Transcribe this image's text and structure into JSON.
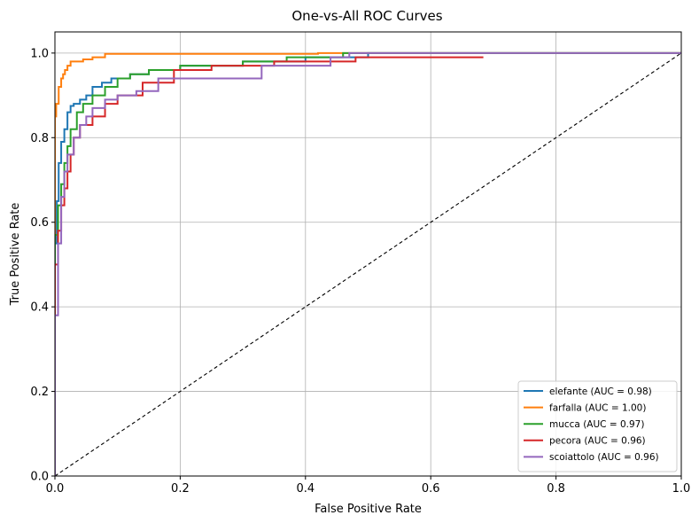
{
  "chart_data": {
    "type": "line",
    "title": "One-vs-All ROC Curves",
    "xlabel": "False Positive Rate",
    "ylabel": "True Positive Rate",
    "xlim": [
      0,
      1
    ],
    "ylim": [
      0,
      1.05
    ],
    "xticks": [
      0.0,
      0.2,
      0.4,
      0.6,
      0.8,
      1.0
    ],
    "yticks": [
      0.0,
      0.2,
      0.4,
      0.6,
      0.8,
      1.0
    ],
    "xtick_labels": [
      "0.0",
      "0.2",
      "0.4",
      "0.6",
      "0.8",
      "1.0"
    ],
    "ytick_labels": [
      "0.0",
      "0.2",
      "0.4",
      "0.6",
      "0.8",
      "1.0"
    ],
    "grid": true,
    "legend_position": "lower-right",
    "diagonal": {
      "x": [
        0,
        1
      ],
      "y": [
        0,
        1
      ],
      "style": "dashed",
      "color": "#000000"
    },
    "series": [
      {
        "name": "elefante (AUC = 0.98)",
        "color": "#1f77b4",
        "x": [
          0,
          0,
          0.003,
          0.003,
          0.006,
          0.006,
          0.01,
          0.01,
          0.015,
          0.015,
          0.02,
          0.02,
          0.025,
          0.025,
          0.03,
          0.03,
          0.04,
          0.04,
          0.05,
          0.05,
          0.06,
          0.06,
          0.075,
          0.075,
          0.09,
          0.09,
          0.12,
          0.12,
          0.15,
          0.15,
          0.2,
          0.2,
          0.3,
          0.3,
          0.4,
          0.4,
          0.5,
          0.5,
          1.0
        ],
        "y": [
          0,
          0.55,
          0.55,
          0.65,
          0.65,
          0.74,
          0.74,
          0.79,
          0.79,
          0.82,
          0.82,
          0.86,
          0.86,
          0.875,
          0.875,
          0.88,
          0.88,
          0.89,
          0.89,
          0.9,
          0.9,
          0.92,
          0.92,
          0.93,
          0.93,
          0.94,
          0.94,
          0.95,
          0.95,
          0.96,
          0.96,
          0.97,
          0.97,
          0.98,
          0.98,
          0.99,
          0.99,
          1.0,
          1.0
        ]
      },
      {
        "name": "farfalla (AUC = 1.00)",
        "color": "#ff7f0e",
        "x": [
          0,
          0,
          0.002,
          0.002,
          0.006,
          0.006,
          0.01,
          0.01,
          0.013,
          0.013,
          0.016,
          0.016,
          0.02,
          0.02,
          0.025,
          0.025,
          0.045,
          0.045,
          0.06,
          0.06,
          0.08,
          0.08,
          0.42,
          0.42,
          1.0
        ],
        "y": [
          0,
          0.85,
          0.85,
          0.88,
          0.88,
          0.92,
          0.92,
          0.94,
          0.94,
          0.95,
          0.95,
          0.96,
          0.96,
          0.97,
          0.97,
          0.98,
          0.98,
          0.985,
          0.985,
          0.99,
          0.99,
          0.998,
          0.998,
          1.0,
          1.0
        ]
      },
      {
        "name": "mucca (AUC = 0.97)",
        "color": "#2ca02c",
        "x": [
          0,
          0,
          0.005,
          0.005,
          0.01,
          0.01,
          0.015,
          0.015,
          0.02,
          0.02,
          0.025,
          0.025,
          0.035,
          0.035,
          0.045,
          0.045,
          0.06,
          0.06,
          0.08,
          0.08,
          0.1,
          0.1,
          0.12,
          0.12,
          0.15,
          0.15,
          0.2,
          0.2,
          0.3,
          0.3,
          0.37,
          0.37,
          0.46,
          0.46,
          1.0
        ],
        "y": [
          0,
          0.57,
          0.57,
          0.64,
          0.64,
          0.69,
          0.69,
          0.74,
          0.74,
          0.78,
          0.78,
          0.82,
          0.82,
          0.86,
          0.86,
          0.88,
          0.88,
          0.9,
          0.9,
          0.92,
          0.92,
          0.94,
          0.94,
          0.95,
          0.95,
          0.96,
          0.96,
          0.97,
          0.97,
          0.98,
          0.98,
          0.99,
          0.99,
          1.0,
          1.0
        ]
      },
      {
        "name": "pecora (AUC = 0.96)",
        "color": "#d62728",
        "x": [
          0,
          0,
          0.005,
          0.005,
          0.01,
          0.01,
          0.015,
          0.015,
          0.02,
          0.02,
          0.025,
          0.025,
          0.03,
          0.03,
          0.04,
          0.04,
          0.06,
          0.06,
          0.08,
          0.08,
          0.1,
          0.1,
          0.14,
          0.14,
          0.19,
          0.19,
          0.25,
          0.25,
          0.35,
          0.35,
          0.48,
          0.48,
          0.684
        ],
        "y": [
          0,
          0.5,
          0.5,
          0.58,
          0.58,
          0.64,
          0.64,
          0.68,
          0.68,
          0.72,
          0.72,
          0.76,
          0.76,
          0.8,
          0.8,
          0.83,
          0.83,
          0.85,
          0.85,
          0.88,
          0.88,
          0.9,
          0.9,
          0.93,
          0.93,
          0.96,
          0.96,
          0.97,
          0.97,
          0.98,
          0.98,
          0.99,
          0.99
        ]
      },
      {
        "name": "scoiattolo (AUC = 0.96)",
        "color": "#9467bd",
        "x": [
          0,
          0,
          0.005,
          0.005,
          0.01,
          0.01,
          0.015,
          0.015,
          0.02,
          0.02,
          0.03,
          0.03,
          0.04,
          0.04,
          0.05,
          0.05,
          0.06,
          0.06,
          0.08,
          0.08,
          0.1,
          0.1,
          0.13,
          0.13,
          0.165,
          0.165,
          0.33,
          0.33,
          0.44,
          0.44,
          0.47,
          0.47,
          1.0
        ],
        "y": [
          0,
          0.38,
          0.38,
          0.55,
          0.55,
          0.66,
          0.66,
          0.72,
          0.72,
          0.76,
          0.76,
          0.8,
          0.8,
          0.83,
          0.83,
          0.85,
          0.85,
          0.87,
          0.87,
          0.89,
          0.89,
          0.9,
          0.9,
          0.91,
          0.91,
          0.94,
          0.94,
          0.97,
          0.97,
          0.99,
          0.99,
          1.0,
          1.0
        ]
      }
    ]
  }
}
